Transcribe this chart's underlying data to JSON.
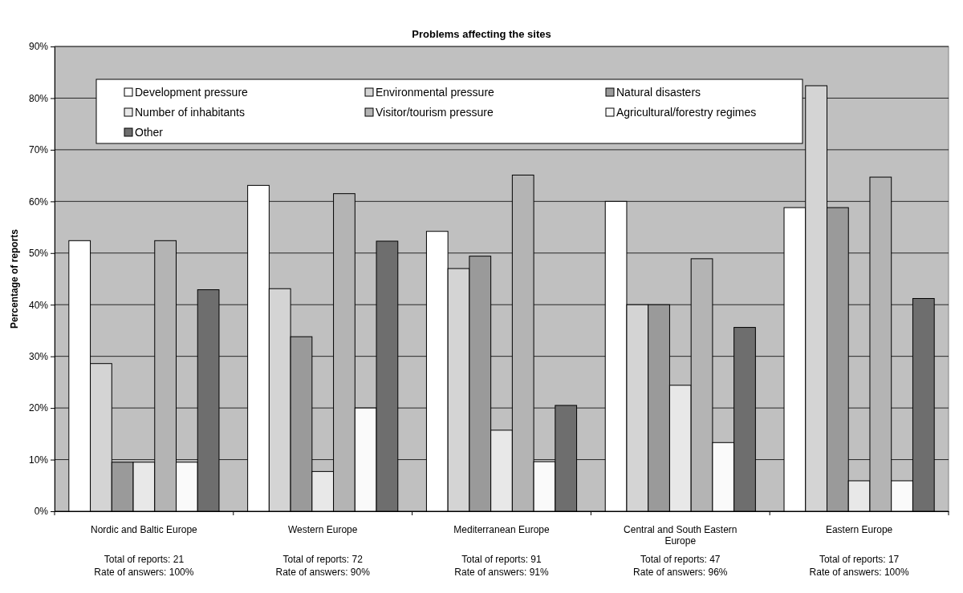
{
  "chart_data": {
    "type": "bar",
    "title": "Problems affecting the sites",
    "ylabel": "Percentage of reports",
    "categories": [
      "Nordic and Baltic Europe",
      "Western Europe",
      "Mediterranean Europe",
      "Central and South Eastern Europe",
      "Eastern Europe"
    ],
    "series": [
      {
        "name": "Development pressure",
        "color": "#ffffff",
        "values": [
          52.4,
          63.1,
          54.2,
          60,
          58.8
        ]
      },
      {
        "name": "Environmental pressure",
        "color": "#d4d4d4",
        "values": [
          28.6,
          43.1,
          47,
          40,
          82.4
        ]
      },
      {
        "name": "Natural disasters",
        "color": "#9a9a9a",
        "values": [
          9.5,
          33.8,
          49.4,
          40,
          58.8
        ]
      },
      {
        "name": "Number of inhabitants",
        "color": "#e8e8e8",
        "values": [
          9.5,
          7.7,
          15.7,
          24.4,
          5.9
        ]
      },
      {
        "name": "Visitor/tourism pressure",
        "color": "#b4b4b4",
        "values": [
          52.4,
          61.5,
          65.1,
          48.9,
          64.7
        ]
      },
      {
        "name": "Agricultural/forestry regimes",
        "color": "#fafafa",
        "values": [
          9.5,
          20,
          9.6,
          13.3,
          5.9
        ]
      },
      {
        "name": "Other",
        "color": "#6e6e6e",
        "values": [
          42.9,
          52.3,
          20.5,
          35.6,
          41.2
        ]
      }
    ],
    "ylim": [
      0,
      90
    ],
    "yticks": [
      {
        "value": 0,
        "label": "0%"
      },
      {
        "value": 10,
        "label": "10%"
      },
      {
        "value": 20,
        "label": "20%"
      },
      {
        "value": 30,
        "label": "30%"
      },
      {
        "value": 40,
        "label": "40%"
      },
      {
        "value": 50,
        "label": "50%"
      },
      {
        "value": 60,
        "label": "60%"
      },
      {
        "value": 70,
        "label": "70%"
      },
      {
        "value": 80,
        "label": "80%"
      },
      {
        "value": 90,
        "label": "90%"
      }
    ],
    "grid": "y",
    "legend": "top",
    "annotations": [
      "Total of reports: 21",
      "Rate of answers: 100%",
      "Total of reports: 72",
      "Rate of answers: 90%",
      "Total of reports: 91",
      "Rate of answers: 91%",
      "Total of reports: 47",
      "Rate of answers: 96%",
      "Total of reports: 17",
      "Rate of answers: 100%"
    ]
  }
}
